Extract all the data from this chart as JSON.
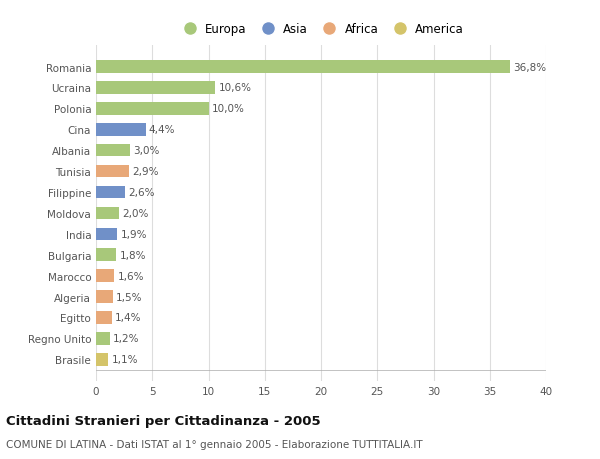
{
  "categories": [
    "Brasile",
    "Regno Unito",
    "Egitto",
    "Algeria",
    "Marocco",
    "Bulgaria",
    "India",
    "Moldova",
    "Filippine",
    "Tunisia",
    "Albania",
    "Cina",
    "Polonia",
    "Ucraina",
    "Romania"
  ],
  "values": [
    1.1,
    1.2,
    1.4,
    1.5,
    1.6,
    1.8,
    1.9,
    2.0,
    2.6,
    2.9,
    3.0,
    4.4,
    10.0,
    10.6,
    36.8
  ],
  "labels": [
    "1,1%",
    "1,2%",
    "1,4%",
    "1,5%",
    "1,6%",
    "1,8%",
    "1,9%",
    "2,0%",
    "2,6%",
    "2,9%",
    "3,0%",
    "4,4%",
    "10,0%",
    "10,6%",
    "36,8%"
  ],
  "colors": [
    "#D4C46A",
    "#A8C87A",
    "#E8A878",
    "#E8A878",
    "#E8A878",
    "#A8C87A",
    "#7090C8",
    "#A8C87A",
    "#7090C8",
    "#E8A878",
    "#A8C87A",
    "#7090C8",
    "#A8C87A",
    "#A8C87A",
    "#A8C87A"
  ],
  "legend_labels": [
    "Europa",
    "Asia",
    "Africa",
    "America"
  ],
  "legend_colors": [
    "#A8C87A",
    "#7090C8",
    "#E8A878",
    "#D4C46A"
  ],
  "title": "Cittadini Stranieri per Cittadinanza - 2005",
  "subtitle": "COMUNE DI LATINA - Dati ISTAT al 1° gennaio 2005 - Elaborazione TUTTITALIA.IT",
  "xlim": [
    0,
    40
  ],
  "xticks": [
    0,
    5,
    10,
    15,
    20,
    25,
    30,
    35,
    40
  ],
  "background_color": "#ffffff",
  "plot_background": "#ffffff",
  "grid_color": "#dddddd"
}
